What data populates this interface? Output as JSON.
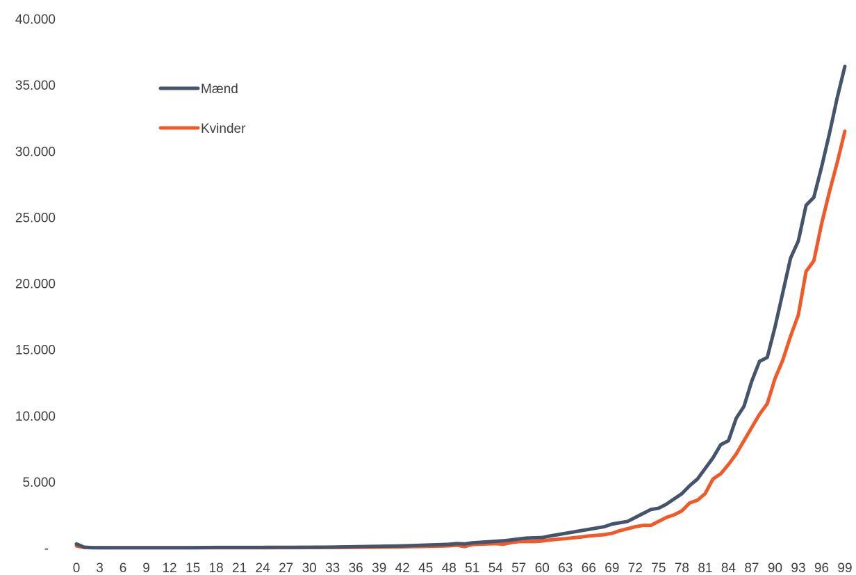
{
  "chart_data": {
    "type": "line",
    "title": "",
    "xlabel": "",
    "ylabel": "",
    "x": [
      0,
      1,
      2,
      3,
      4,
      5,
      6,
      7,
      8,
      9,
      10,
      11,
      12,
      13,
      14,
      15,
      16,
      17,
      18,
      19,
      20,
      21,
      22,
      23,
      24,
      25,
      26,
      27,
      28,
      29,
      30,
      31,
      32,
      33,
      34,
      35,
      36,
      37,
      38,
      39,
      40,
      41,
      42,
      43,
      44,
      45,
      46,
      47,
      48,
      49,
      50,
      51,
      52,
      53,
      54,
      55,
      56,
      57,
      58,
      59,
      60,
      61,
      62,
      63,
      64,
      65,
      66,
      67,
      68,
      69,
      70,
      71,
      72,
      73,
      74,
      75,
      76,
      77,
      78,
      79,
      80,
      81,
      82,
      83,
      84,
      85,
      86,
      87,
      88,
      89,
      90,
      91,
      92,
      93,
      94,
      95,
      96,
      97,
      98,
      99
    ],
    "x_tick_labels": [
      "0",
      "3",
      "6",
      "9",
      "12",
      "15",
      "18",
      "21",
      "24",
      "27",
      "30",
      "33",
      "36",
      "39",
      "42",
      "45",
      "48",
      "51",
      "54",
      "57",
      "60",
      "63",
      "66",
      "69",
      "72",
      "75",
      "78",
      "81",
      "84",
      "87",
      "90",
      "93",
      "96",
      "99"
    ],
    "y_ticks": [
      0,
      5000,
      10000,
      15000,
      20000,
      25000,
      30000,
      35000,
      40000
    ],
    "y_tick_labels": [
      "-",
      "5.000",
      "10.000",
      "15.000",
      "20.000",
      "25.000",
      "30.000",
      "35.000",
      "40.000"
    ],
    "ylim": [
      0,
      40000
    ],
    "grid": false,
    "legend_position": "top-left",
    "series": [
      {
        "name": "Mænd",
        "color": "#44546a",
        "values": [
          300,
          50,
          20,
          15,
          10,
          10,
          10,
          10,
          10,
          10,
          10,
          10,
          10,
          10,
          15,
          15,
          20,
          25,
          30,
          30,
          35,
          35,
          35,
          35,
          35,
          40,
          40,
          40,
          40,
          45,
          45,
          50,
          50,
          60,
          70,
          80,
          90,
          100,
          110,
          120,
          130,
          140,
          150,
          170,
          190,
          210,
          230,
          250,
          270,
          330,
          300,
          380,
          420,
          460,
          500,
          540,
          600,
          680,
          740,
          760,
          780,
          900,
          1000,
          1100,
          1200,
          1300,
          1400,
          1500,
          1600,
          1800,
          1900,
          2000,
          2300,
          2600,
          2900,
          3000,
          3300,
          3700,
          4100,
          4700,
          5200,
          6000,
          6800,
          7800,
          8100,
          9800,
          10700,
          12600,
          14100,
          14400,
          16700,
          19300,
          21900,
          23200,
          25900,
          26500,
          28800,
          31300,
          34000,
          36400
        ]
      },
      {
        "name": "Kvinder",
        "color": "#f05a28",
        "values": [
          150,
          30,
          15,
          10,
          10,
          10,
          10,
          10,
          10,
          10,
          10,
          10,
          10,
          10,
          10,
          10,
          10,
          10,
          10,
          10,
          10,
          15,
          15,
          15,
          15,
          15,
          20,
          20,
          20,
          20,
          25,
          25,
          30,
          30,
          35,
          40,
          45,
          50,
          55,
          60,
          65,
          70,
          80,
          90,
          100,
          110,
          120,
          140,
          160,
          200,
          100,
          250,
          280,
          300,
          320,
          280,
          400,
          480,
          480,
          480,
          520,
          600,
          650,
          700,
          760,
          820,
          900,
          950,
          1000,
          1100,
          1300,
          1450,
          1600,
          1700,
          1700,
          2000,
          2300,
          2500,
          2800,
          3400,
          3600,
          4100,
          5200,
          5600,
          6300,
          7100,
          8100,
          9100,
          10100,
          10900,
          12800,
          14200,
          16000,
          17600,
          20900,
          21700,
          24500,
          26900,
          29100,
          31500
        ]
      }
    ]
  }
}
